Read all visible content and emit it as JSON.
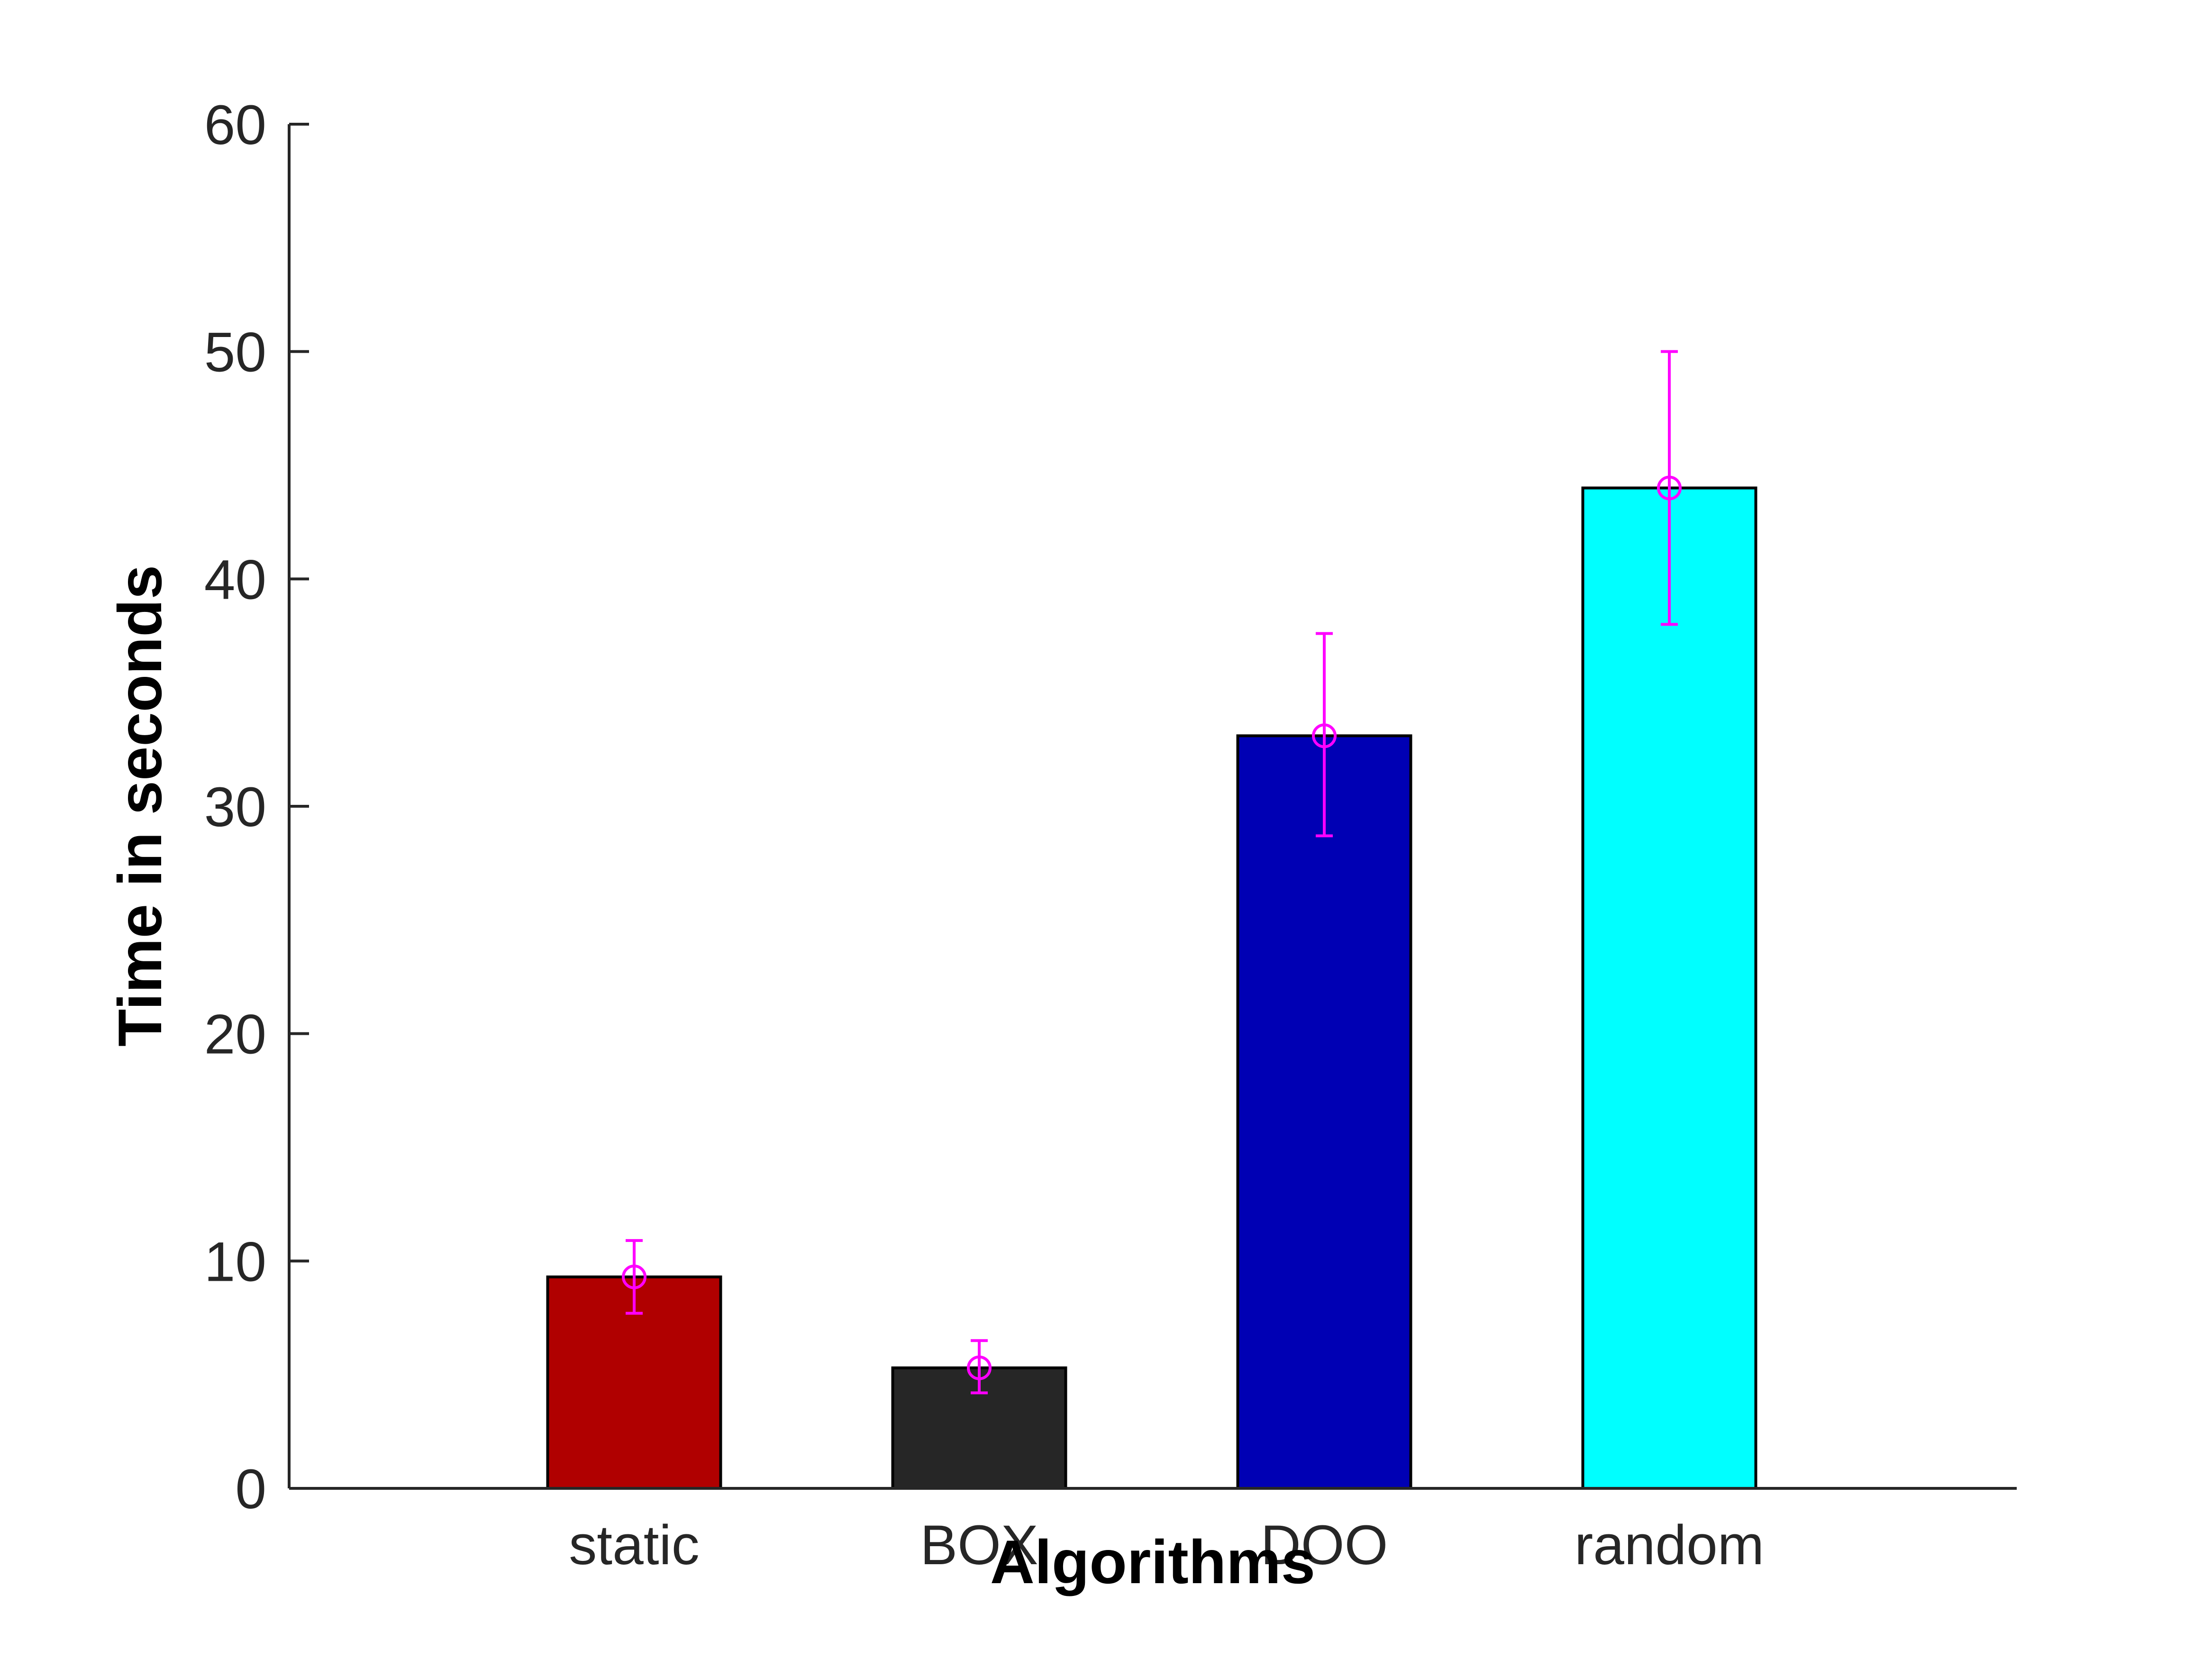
{
  "chart_data": {
    "type": "bar",
    "title": "",
    "xlabel": "Algorithms",
    "ylabel": "Time in seconds",
    "categories": [
      "static",
      "BOX",
      "DOO",
      "random"
    ],
    "values": [
      9.3,
      5.3,
      33.1,
      44.0
    ],
    "error_low": [
      7.7,
      4.2,
      28.7,
      38.0
    ],
    "error_high": [
      10.9,
      6.5,
      37.6,
      50.0
    ],
    "bar_colors": [
      "#b00000",
      "#262626",
      "#0000b4",
      "#00ffff"
    ],
    "error_color": "#ff00ff",
    "ylim": [
      0,
      60
    ],
    "yticks": [
      0,
      10,
      20,
      30,
      40,
      50,
      60
    ],
    "grid": false,
    "legend": "none"
  }
}
